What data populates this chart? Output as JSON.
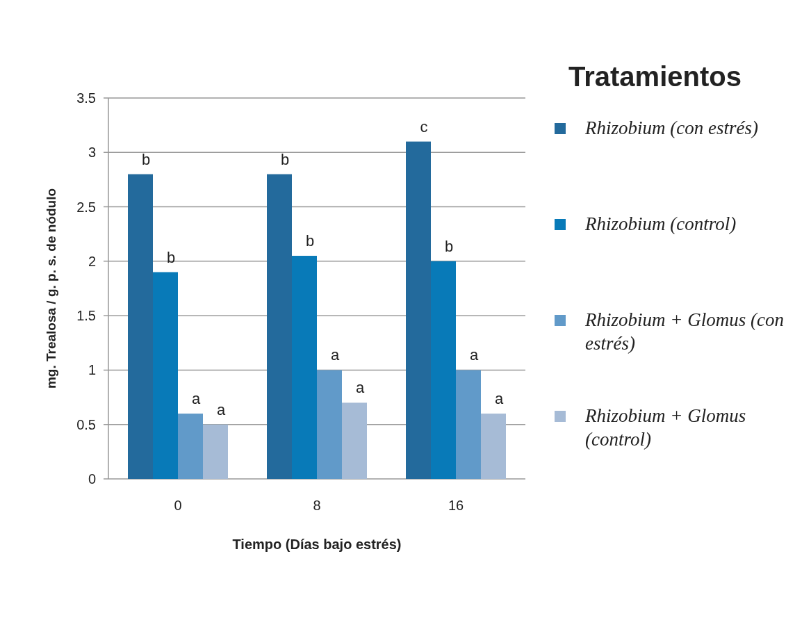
{
  "chart_data": {
    "type": "bar",
    "xlabel": "Tiempo (Días bajo estrés)",
    "ylabel": "mg. Trealosa / g. p. s. de nódulo",
    "legend_title": "Tratamientos",
    "legend": "right",
    "grid": "y",
    "categories": [
      "0",
      "8",
      "16"
    ],
    "ylim": [
      0,
      3.5
    ],
    "yticks": [
      0,
      0.5,
      1,
      1.5,
      2,
      2.5,
      3,
      3.5
    ],
    "series": [
      {
        "name": "Rhizobium (con estrés)",
        "color": "#236a9c",
        "values": [
          2.8,
          2.8,
          3.1
        ],
        "value_labels": [
          "b",
          "b",
          "c"
        ]
      },
      {
        "name": "Rhizobium (control)",
        "color": "#087ab8",
        "values": [
          1.9,
          2.05,
          2.0
        ],
        "value_labels": [
          "b",
          "b",
          "b"
        ]
      },
      {
        "name": "Rhizobium + Glomus (con estrés)",
        "color": "#619ac9",
        "values": [
          0.6,
          1.0,
          1.0
        ],
        "value_labels": [
          "a",
          "a",
          "a"
        ]
      },
      {
        "name": "Rhizobium + Glomus (control)",
        "color": "#a6bbd6",
        "values": [
          0.5,
          0.7,
          0.6
        ],
        "value_labels": [
          "a",
          "a",
          "a"
        ]
      }
    ]
  }
}
